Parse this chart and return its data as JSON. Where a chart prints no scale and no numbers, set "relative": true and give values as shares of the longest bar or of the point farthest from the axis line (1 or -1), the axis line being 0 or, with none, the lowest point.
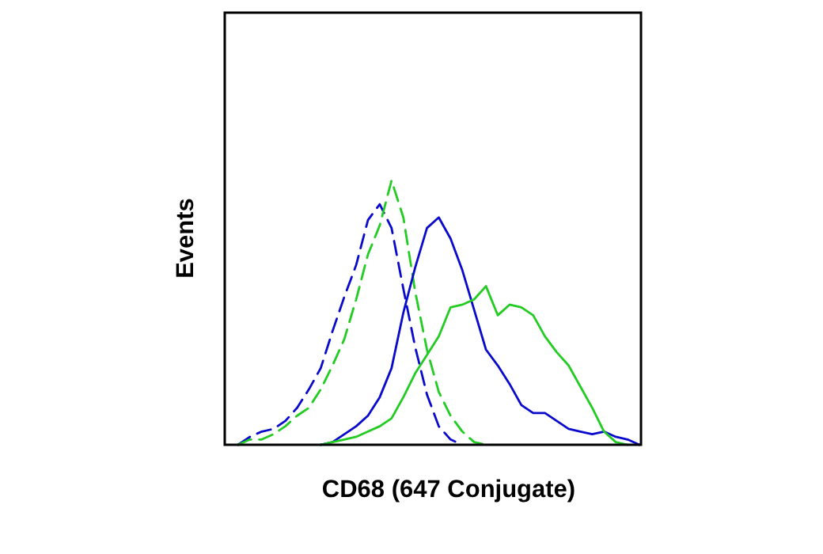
{
  "chart_data": {
    "type": "line",
    "xlabel": "CD68 (647 Conjugate)",
    "ylabel": "Events",
    "relative": true,
    "categories": [
      null,
      null,
      null,
      null,
      null,
      null,
      null,
      null,
      null,
      null,
      null,
      null,
      null,
      null,
      null,
      null,
      null,
      null,
      null,
      null,
      null,
      null,
      null,
      null,
      null,
      null,
      null,
      null,
      null,
      null,
      null,
      null,
      null,
      null,
      null,
      null
    ],
    "series": [
      {
        "color": "#0a0acc",
        "line_style": "dashed",
        "values": [
          null,
          0,
          0.03,
          0.05,
          0.06,
          0.09,
          0.14,
          0.21,
          0.29,
          0.43,
          0.56,
          0.68,
          0.85,
          0.91,
          0.82,
          0.59,
          0.37,
          0.19,
          0.07,
          0.02,
          0,
          null,
          null,
          null,
          null,
          null,
          null,
          null,
          null,
          null,
          null,
          null,
          null,
          null,
          null,
          null
        ]
      },
      {
        "color": "#22cc22",
        "line_style": "dashed",
        "values": [
          null,
          0,
          0.02,
          0.02,
          0.04,
          0.07,
          0.11,
          0.14,
          0.21,
          0.3,
          0.4,
          0.55,
          0.72,
          0.83,
          1,
          0.86,
          0.58,
          0.36,
          0.2,
          0.11,
          0.05,
          0.01,
          0,
          null,
          null,
          null,
          null,
          null,
          null,
          null,
          null,
          null,
          null,
          null,
          null,
          null
        ]
      },
      {
        "color": "#0a0acc",
        "line_style": "solid",
        "values": [
          null,
          null,
          null,
          null,
          null,
          null,
          null,
          null,
          0,
          0.01,
          0.04,
          0.07,
          0.11,
          0.18,
          0.29,
          0.5,
          0.67,
          0.82,
          0.86,
          0.78,
          0.66,
          0.51,
          0.36,
          0.3,
          0.23,
          0.15,
          0.12,
          0.12,
          0.09,
          0.06,
          0.05,
          0.04,
          0.05,
          0.03,
          0.02,
          0
        ]
      },
      {
        "color": "#22cc22",
        "line_style": "solid",
        "values": [
          null,
          null,
          null,
          null,
          null,
          null,
          null,
          null,
          0,
          0.01,
          0.02,
          0.03,
          0.05,
          0.07,
          0.1,
          0.18,
          0.27,
          0.34,
          0.41,
          0.52,
          0.53,
          0.55,
          0.6,
          0.49,
          0.53,
          0.52,
          0.49,
          0.41,
          0.35,
          0.3,
          0.22,
          0.14,
          0.05,
          0.01,
          0,
          null
        ]
      }
    ]
  }
}
